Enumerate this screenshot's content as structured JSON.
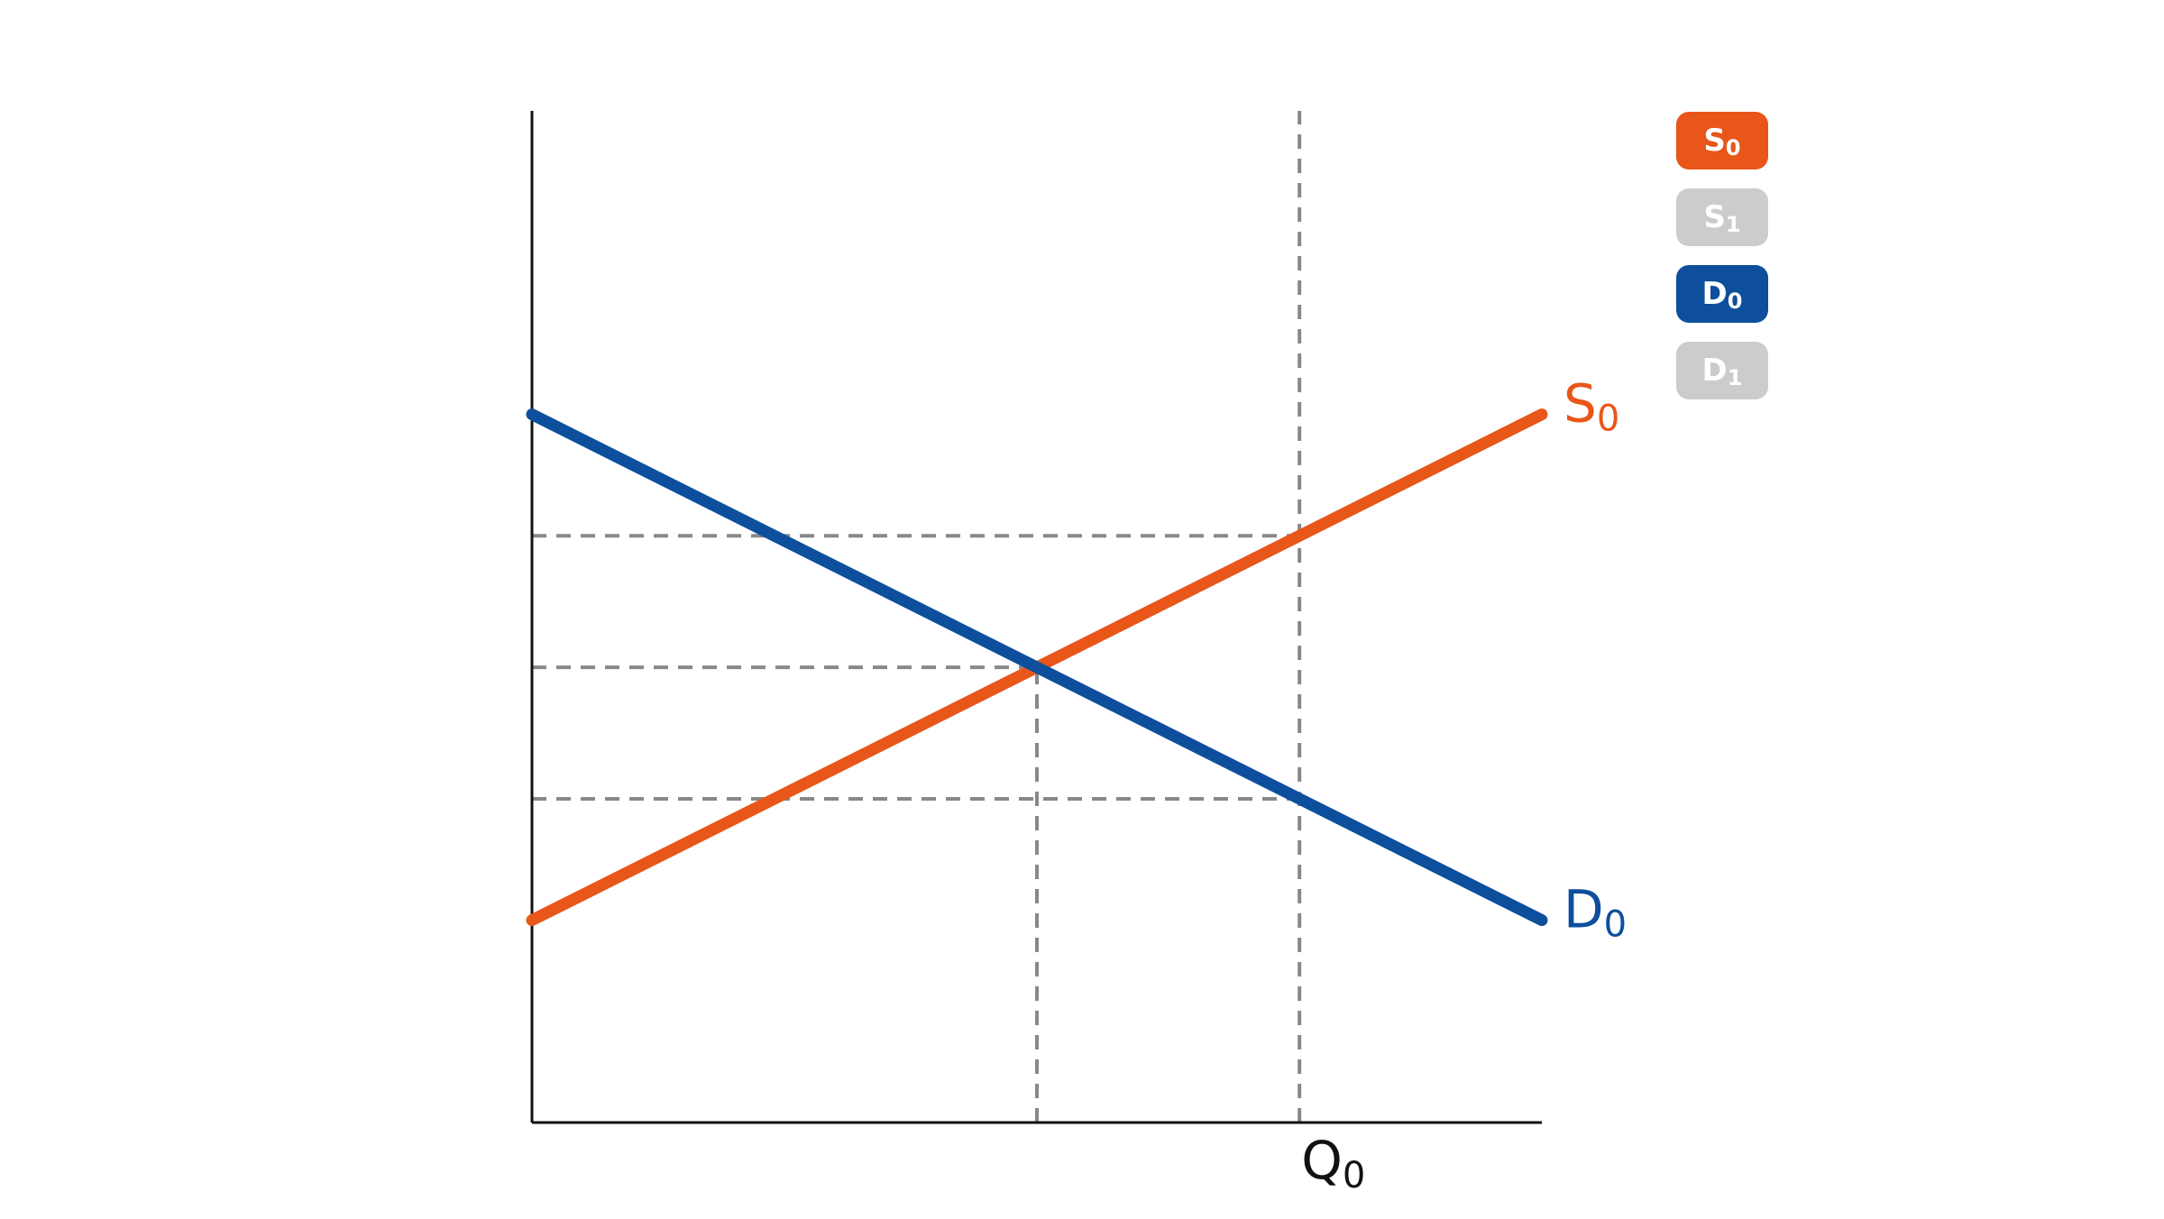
{
  "chart_data": {
    "type": "line",
    "title": "",
    "xlabel": "",
    "ylabel": "",
    "xlim": [
      0,
      10
    ],
    "ylim": [
      0,
      10
    ],
    "grid": false,
    "legend_position": "top-right",
    "x_ticks": [
      {
        "value": 7.6,
        "label_main": "Q",
        "label_sub": "0"
      }
    ],
    "series": [
      {
        "id": "S0",
        "name_main": "S",
        "name_sub": "0",
        "color": "#e8561a",
        "active": true,
        "x": [
          0,
          10
        ],
        "y": [
          2,
          7
        ]
      },
      {
        "id": "D0",
        "name_main": "D",
        "name_sub": "0",
        "color": "#0d4f9c",
        "active": true,
        "x": [
          0,
          10
        ],
        "y": [
          7,
          2
        ]
      }
    ],
    "reference_lines": {
      "vertical": [
        {
          "x": 5,
          "y_from": 0,
          "y_to": 4.5
        },
        {
          "x": 7.6,
          "y_from": 0,
          "y_to": 10
        }
      ],
      "horizontal": [
        {
          "y": 5.8,
          "x_from": 0,
          "x_to": 7.6
        },
        {
          "y": 4.5,
          "x_from": 0,
          "x_to": 5
        },
        {
          "y": 3.2,
          "x_from": 0,
          "x_to": 7.6
        }
      ]
    }
  },
  "legend": {
    "items": [
      {
        "main": "S",
        "sub": "0",
        "color": "#e8561a",
        "active": true
      },
      {
        "main": "S",
        "sub": "1",
        "color": "#cccccc",
        "active": false
      },
      {
        "main": "D",
        "sub": "0",
        "color": "#0d4f9c",
        "active": true
      },
      {
        "main": "D",
        "sub": "1",
        "color": "#cccccc",
        "active": false
      }
    ]
  }
}
